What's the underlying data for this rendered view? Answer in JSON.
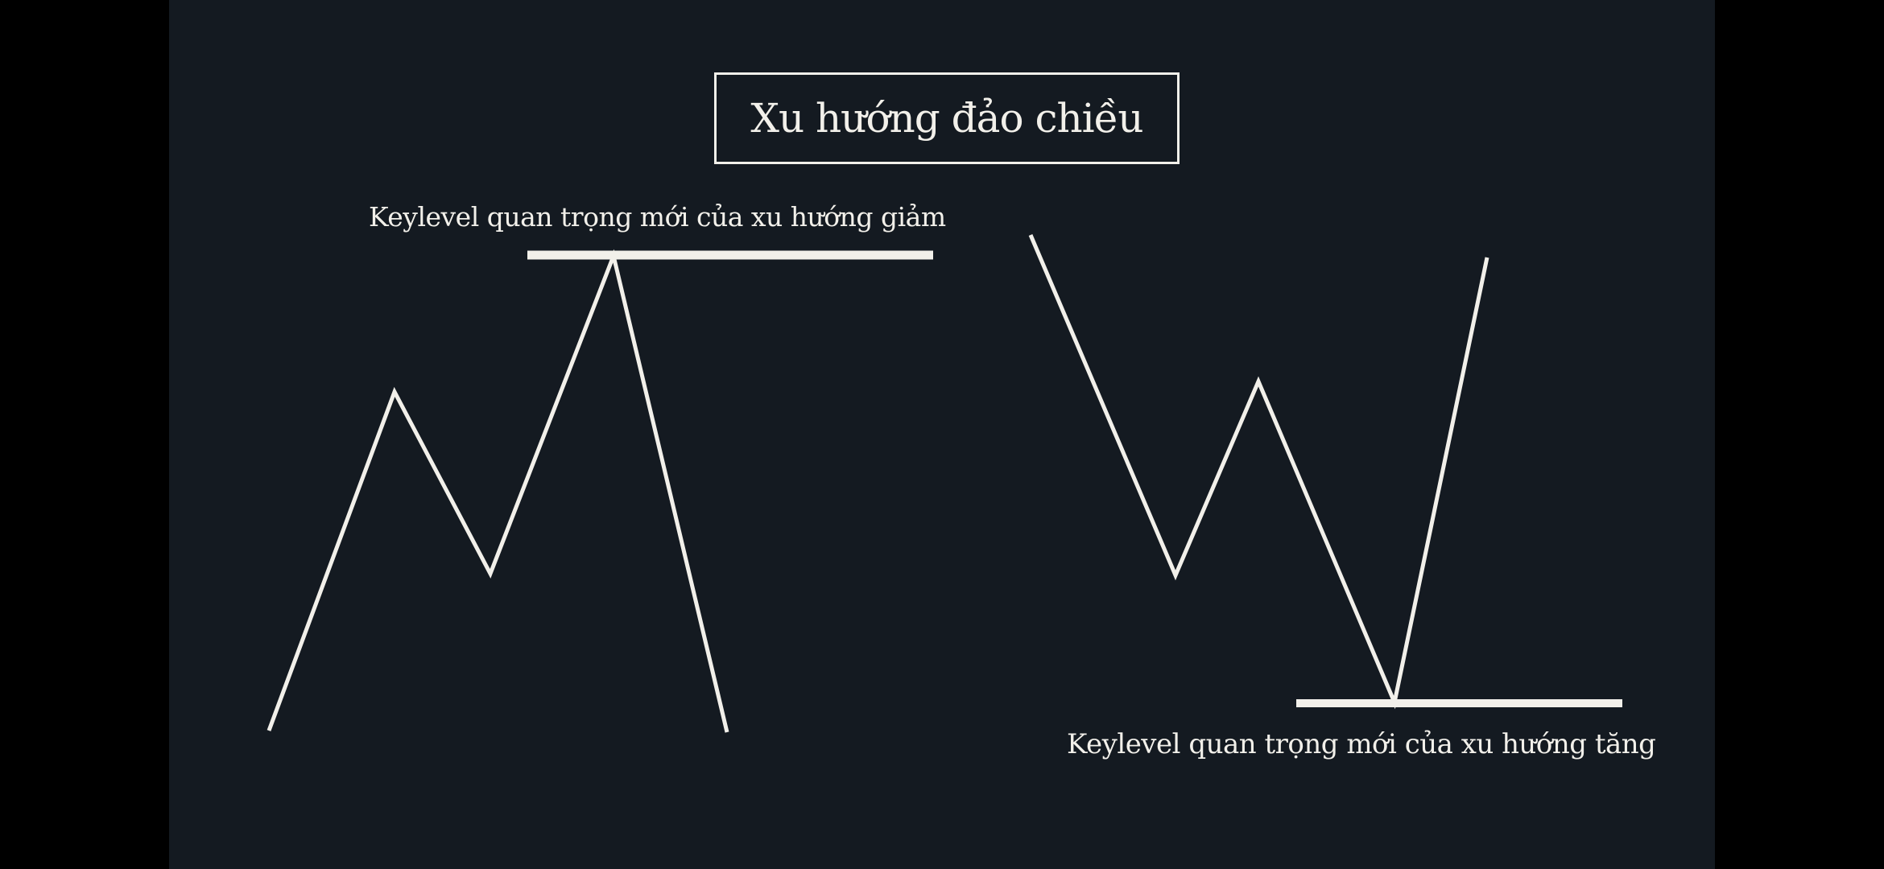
{
  "title": "Xu hướng đảo chiều",
  "label_top": "Keylevel quan trọng mới của xu hướng giảm",
  "label_bottom": "Keylevel quan trọng mới của xu hướng tăng",
  "colors": {
    "outer_background": "#000000",
    "slide_background": "#141a21",
    "line": "#f2f0ea"
  },
  "patterns": [
    {
      "shape": "M-top",
      "keylevel": "resistance"
    },
    {
      "shape": "W-bottom",
      "keylevel": "support"
    }
  ]
}
